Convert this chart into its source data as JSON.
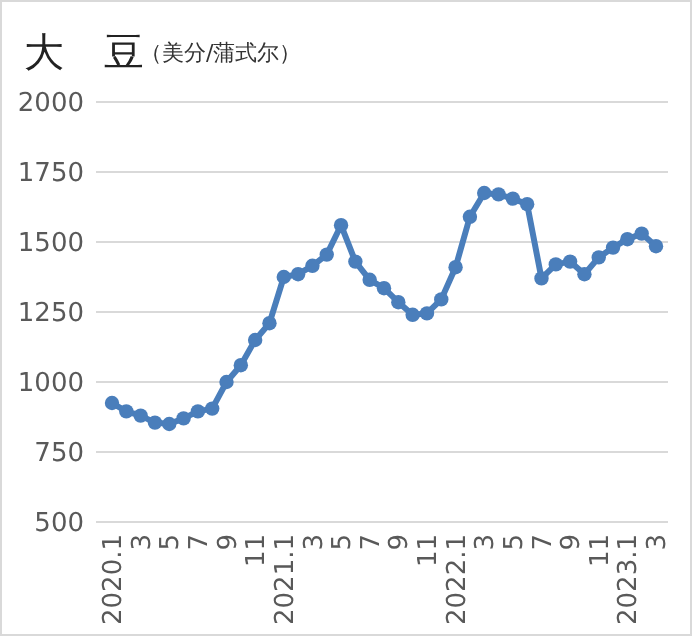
{
  "chart_data": {
    "type": "line",
    "title": "大　豆",
    "subtitle": "（美分/蒲式尔）",
    "categories": [
      "2020.1",
      null,
      "3",
      null,
      "5",
      null,
      "7",
      null,
      "9",
      null,
      "11",
      null,
      "2021.1",
      null,
      "3",
      null,
      "5",
      null,
      "7",
      null,
      "9",
      null,
      "11",
      null,
      "2022.1",
      null,
      "3",
      null,
      "5",
      null,
      "7",
      null,
      "9",
      null,
      "11",
      null,
      "2023.1",
      null,
      "3"
    ],
    "series": [
      {
        "color": "#4a7ebb",
        "values": [
          925,
          895,
          880,
          855,
          850,
          870,
          895,
          905,
          1000,
          1060,
          1150,
          1210,
          1375,
          1385,
          1415,
          1455,
          1560,
          1430,
          1365,
          1335,
          1285,
          1240,
          1245,
          1295,
          1410,
          1590,
          1675,
          1670,
          1655,
          1635,
          1370,
          1420,
          1430,
          1385,
          1445,
          1480,
          1510,
          1530,
          1485
        ]
      }
    ],
    "ylim": [
      500,
      2000
    ],
    "yticks": [
      500,
      750,
      1000,
      1250,
      1500,
      1750,
      2000
    ],
    "grid": "y",
    "marker": "circle",
    "line_style": "solid"
  }
}
